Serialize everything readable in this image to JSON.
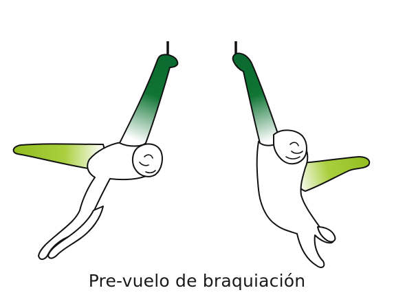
{
  "caption": "Pre-vuelo de braquiación",
  "colors": {
    "dark_green": "#0b6a2f",
    "light_green": "#9cc428",
    "outline": "#111111",
    "background": "#ffffff"
  }
}
